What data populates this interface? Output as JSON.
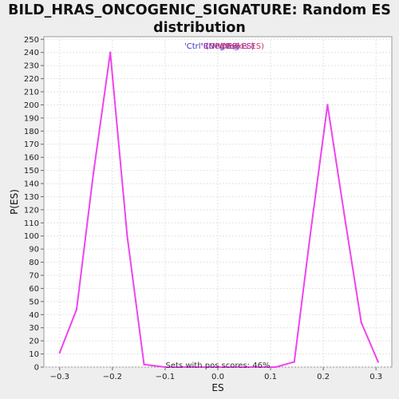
{
  "chart_data": {
    "type": "line",
    "title": "BILD_HRAS_ONCOGENIC_SIGNATURE: Random ES distribution",
    "xlabel": "ES",
    "ylabel": "P(ES)",
    "xlim": [
      -0.33,
      0.33
    ],
    "ylim": [
      0,
      252
    ],
    "x_ticks": [
      -0.3,
      -0.2,
      -0.1,
      0.0,
      0.1,
      0.2,
      0.3
    ],
    "x_tick_labels": [
      "−0.3",
      "−0.2",
      "−0.1",
      "0.0",
      "0.1",
      "0.2",
      "0.3"
    ],
    "y_ticks": [
      0,
      10,
      20,
      30,
      40,
      50,
      60,
      70,
      80,
      90,
      100,
      110,
      120,
      130,
      140,
      150,
      160,
      170,
      180,
      190,
      200,
      210,
      220,
      230,
      240,
      250
    ],
    "grid": true,
    "legend": {
      "placement": "top-center",
      "entries": [
        {
          "text": "'Ctrl' (Neg ES)",
          "color": "#3333cc"
        },
        {
          "text": "'Ctrl' (Pos ES)",
          "color": "#cc3333"
        },
        {
          "text": "'RD' (Neg ES)",
          "color": "#9933cc"
        },
        {
          "text": "'RD' (Pos ES)",
          "color": "#cc3366"
        }
      ]
    },
    "annotation": "Sets with pos scores: 46%",
    "series": [
      {
        "color": "#ee44ee",
        "x": [
          -0.3,
          -0.268,
          -0.236,
          -0.204,
          -0.172,
          -0.14,
          -0.1,
          -0.05,
          0.0,
          0.05,
          0.11,
          0.145,
          0.175,
          0.208,
          0.24,
          0.272,
          0.304
        ],
        "y": [
          11,
          44,
          148,
          240,
          100,
          2,
          0,
          0,
          0,
          0,
          0,
          4,
          100,
          200,
          116,
          34,
          4
        ]
      }
    ]
  }
}
